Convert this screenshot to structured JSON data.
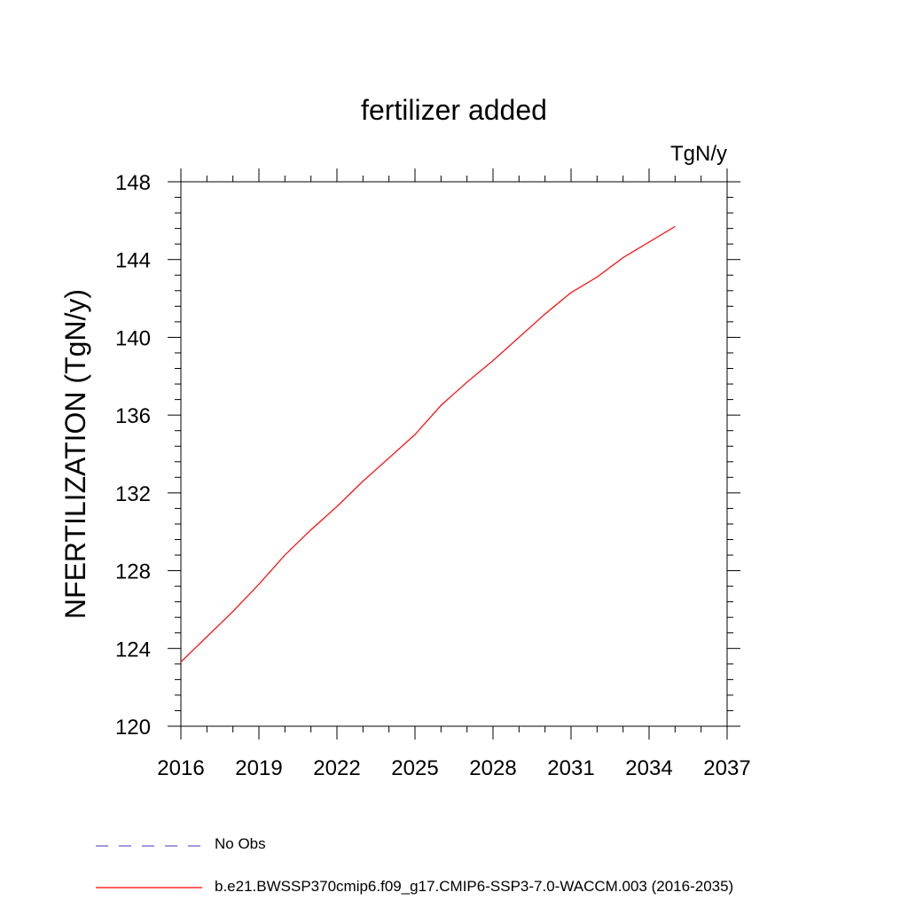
{
  "chart_data": {
    "type": "line",
    "title": "fertilizer added",
    "units_label": "TgN/y",
    "ylabel": "NFERTILIZATION  (TgN/y)",
    "xlim": [
      2016,
      2037
    ],
    "ylim": [
      120,
      148
    ],
    "x_ticks": [
      2016,
      2019,
      2022,
      2025,
      2028,
      2031,
      2034,
      2037
    ],
    "x_tick_labels": [
      "2016",
      "2019",
      "2022",
      "2025",
      "2028",
      "2031",
      "2034",
      "2037"
    ],
    "y_ticks": [
      120,
      124,
      128,
      132,
      136,
      140,
      144,
      148
    ],
    "y_tick_labels": [
      "120",
      "124",
      "128",
      "132",
      "136",
      "140",
      "144",
      "148"
    ],
    "series": [
      {
        "name": "b.e21.BWSSP370cmip6.f09_g17.CMIP6-SSP3-7.0-WACCM.003 (2016-2035)",
        "color": "#ff0000",
        "x": [
          2016,
          2017,
          2018,
          2019,
          2020,
          2021,
          2022,
          2023,
          2024,
          2025,
          2026,
          2027,
          2028,
          2029,
          2030,
          2031,
          2032,
          2033,
          2034,
          2035
        ],
        "y": [
          123.3,
          124.6,
          125.9,
          127.3,
          128.8,
          130.1,
          131.3,
          132.6,
          133.8,
          135.0,
          136.5,
          137.7,
          138.8,
          140.0,
          141.2,
          142.3,
          143.1,
          144.1,
          144.9,
          145.7
        ]
      }
    ],
    "legend": [
      {
        "label": "No Obs",
        "color": "#6a5acd",
        "style": "dashed"
      },
      {
        "label": "b.e21.BWSSP370cmip6.f09_g17.CMIP6-SSP3-7.0-WACCM.003 (2016-2035)",
        "color": "#ff0000",
        "style": "solid"
      }
    ],
    "grid": false,
    "legend_position": "bottom"
  }
}
